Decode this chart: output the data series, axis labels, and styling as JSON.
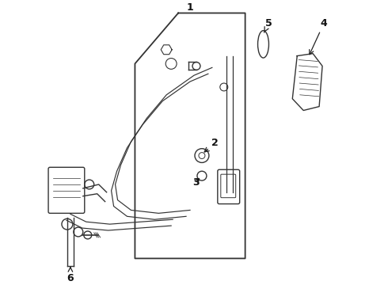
{
  "bg_color": "#ffffff",
  "line_color": "#333333",
  "lw": 1.0,
  "figsize": [
    4.9,
    3.6
  ],
  "dpi": 100,
  "label_fs": 9,
  "arrow_color": "#222222"
}
